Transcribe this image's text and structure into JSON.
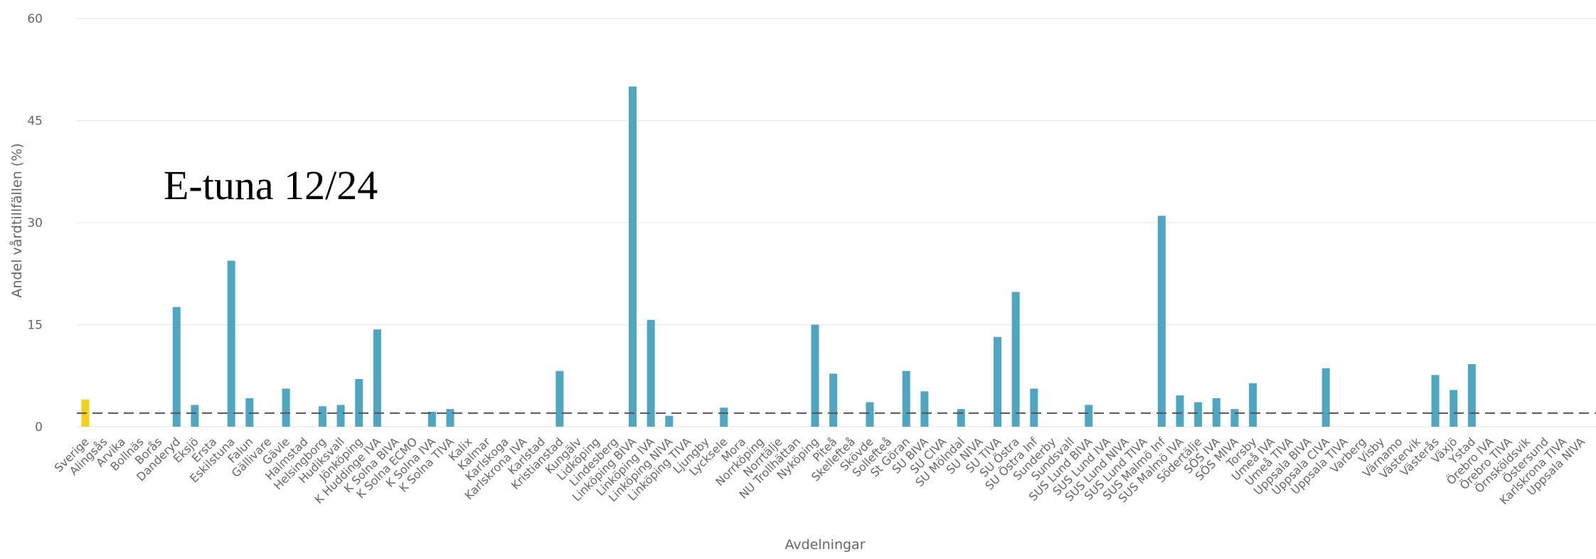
{
  "chart_data": {
    "type": "bar",
    "xlabel": "Avdelningar",
    "ylabel": "Andel vårdtillfällen (%)",
    "ylim": [
      0,
      60
    ],
    "yticks": [
      0,
      15,
      30,
      45,
      60
    ],
    "grid": true,
    "annotation": "E-tuna 12/24",
    "reference_line": 2,
    "colors": {
      "bar": "#4ea6c0",
      "highlight": "#f2d21b",
      "grid": "#e6e6e6",
      "reference": "#555555"
    },
    "highlight_category": "Sverige",
    "categories": [
      "Sverige",
      "Alingsås",
      "Arvika",
      "Bollnäs",
      "Borås",
      "Danderyd",
      "Eksjö",
      "Ersta",
      "Eskilstuna",
      "Falun",
      "Gällivare",
      "Gävle",
      "Halmstad",
      "Helsingborg",
      "Hudiksvall",
      "Jönköping",
      "K Huddinge IVA",
      "K Solna BIVA",
      "K Solna ECMO",
      "K Solna IVA",
      "K Solna TIVA",
      "Kalix",
      "Kalmar",
      "Karlskoga",
      "Karlskrona IVA",
      "Karlstad",
      "Kristianstad",
      "Kungälv",
      "Lidköping",
      "Lindesberg",
      "Linköping BIVA",
      "Linköping IVA",
      "Linköping NIVA",
      "Linköping TIVA",
      "Ljungby",
      "Lycksele",
      "Mora",
      "Norrköping",
      "Norrtälje",
      "NU Trollhättan",
      "Nyköping",
      "Piteå",
      "Skellefteå",
      "Skövde",
      "Sollefteå",
      "St Göran",
      "SU BIVA",
      "SU CIVA",
      "SU Mölndal",
      "SU NIVA",
      "SU TIVA",
      "SU Östra",
      "SU Östra Inf",
      "Sunderby",
      "Sundsvall",
      "SUS Lund BIVA",
      "SUS Lund IVA",
      "SUS Lund NIVA",
      "SUS Lund TIVA",
      "SUS Malmö Inf",
      "SUS Malmö IVA",
      "Södertälje",
      "SÖS IVA",
      "SÖS MIVA",
      "Torsby",
      "Umeå IVA",
      "Umeå TIVA",
      "Uppsala BIVA",
      "Uppsala CIVA",
      "Uppsala TIVA",
      "Varberg",
      "Visby",
      "Värnamo",
      "Västervik",
      "Västerås",
      "Växjö",
      "Ystad",
      "Örebro IVA",
      "Örebro TIVA",
      "Örnsköldsvik",
      "Östersund",
      "Karlskrona TIVA",
      "Uppsala NIVA"
    ],
    "values": [
      4.0,
      0,
      0,
      0,
      0,
      17.6,
      3.2,
      0,
      24.4,
      4.2,
      0,
      5.6,
      0,
      3.0,
      3.2,
      7.0,
      14.3,
      0,
      0,
      2.2,
      2.6,
      0,
      0,
      0,
      0,
      0,
      8.2,
      0,
      0,
      0,
      50,
      15.7,
      1.6,
      0,
      0,
      2.8,
      0,
      0,
      0,
      0,
      15.0,
      7.8,
      0,
      3.6,
      0,
      8.2,
      5.2,
      0,
      2.6,
      0,
      13.2,
      19.8,
      5.6,
      0,
      0,
      3.2,
      0,
      0,
      0,
      31.0,
      4.6,
      3.6,
      4.2,
      2.6,
      6.4,
      0,
      0,
      0,
      8.6,
      0,
      0,
      0,
      0,
      0,
      7.6,
      5.4,
      9.2,
      0,
      0,
      0,
      0,
      0,
      0
    ]
  }
}
